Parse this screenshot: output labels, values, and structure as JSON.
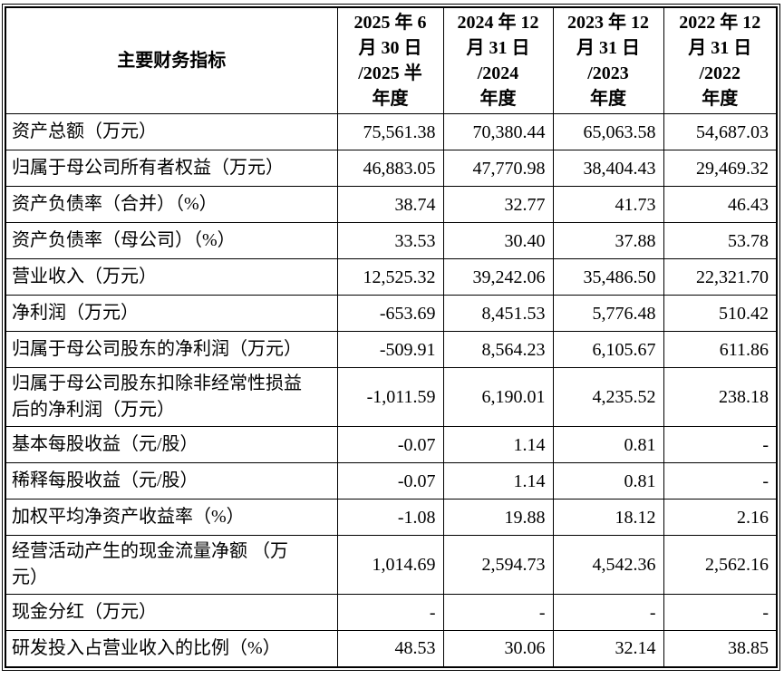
{
  "table": {
    "header": {
      "indicator": "主要财务指标",
      "periods": [
        "2025 年 6\n月 30 日\n/2025 半\n年度",
        "2024 年 12\n月 31 日\n/2024\n年度",
        "2023 年 12\n月 31 日\n/2023\n年度",
        "2022 年 12\n月 31 日\n/2022\n年度"
      ]
    },
    "rows": [
      {
        "label": "资产总额（万元）",
        "values": [
          "75,561.38",
          "70,380.44",
          "65,063.58",
          "54,687.03"
        ]
      },
      {
        "label": "归属于母公司所有者权益（万元）",
        "values": [
          "46,883.05",
          "47,770.98",
          "38,404.43",
          "29,469.32"
        ]
      },
      {
        "label": "资产负债率（合并）（%）",
        "values": [
          "38.74",
          "32.77",
          "41.73",
          "46.43"
        ]
      },
      {
        "label": "资产负债率（母公司）（%）",
        "values": [
          "33.53",
          "30.40",
          "37.88",
          "53.78"
        ]
      },
      {
        "label": "营业收入（万元）",
        "values": [
          "12,525.32",
          "39,242.06",
          "35,486.50",
          "22,321.70"
        ]
      },
      {
        "label": "净利润（万元）",
        "values": [
          "-653.69",
          "8,451.53",
          "5,776.48",
          "510.42"
        ]
      },
      {
        "label": "归属于母公司股东的净利润（万元）",
        "values": [
          "-509.91",
          "8,564.23",
          "6,105.67",
          "611.86"
        ]
      },
      {
        "label": "归属于母公司股东扣除非经常性损益\n后的净利润（万元）",
        "values": [
          "-1,011.59",
          "6,190.01",
          "4,235.52",
          "238.18"
        ]
      },
      {
        "label": "基本每股收益（元/股）",
        "values": [
          "-0.07",
          "1.14",
          "0.81",
          "-"
        ]
      },
      {
        "label": "稀释每股收益（元/股）",
        "values": [
          "-0.07",
          "1.14",
          "0.81",
          "-"
        ]
      },
      {
        "label": "加权平均净资产收益率（%）",
        "values": [
          "-1.08",
          "19.88",
          "18.12",
          "2.16"
        ]
      },
      {
        "label": "经营活动产生的现金流量净额 （万\n元）",
        "values": [
          "1,014.69",
          "2,594.73",
          "4,542.36",
          "2,562.16"
        ]
      },
      {
        "label": "现金分红（万元）",
        "values": [
          "-",
          "-",
          "-",
          "-"
        ]
      },
      {
        "label": "研发投入占营业收入的比例（%）",
        "values": [
          "48.53",
          "30.06",
          "32.14",
          "38.85"
        ]
      }
    ]
  }
}
